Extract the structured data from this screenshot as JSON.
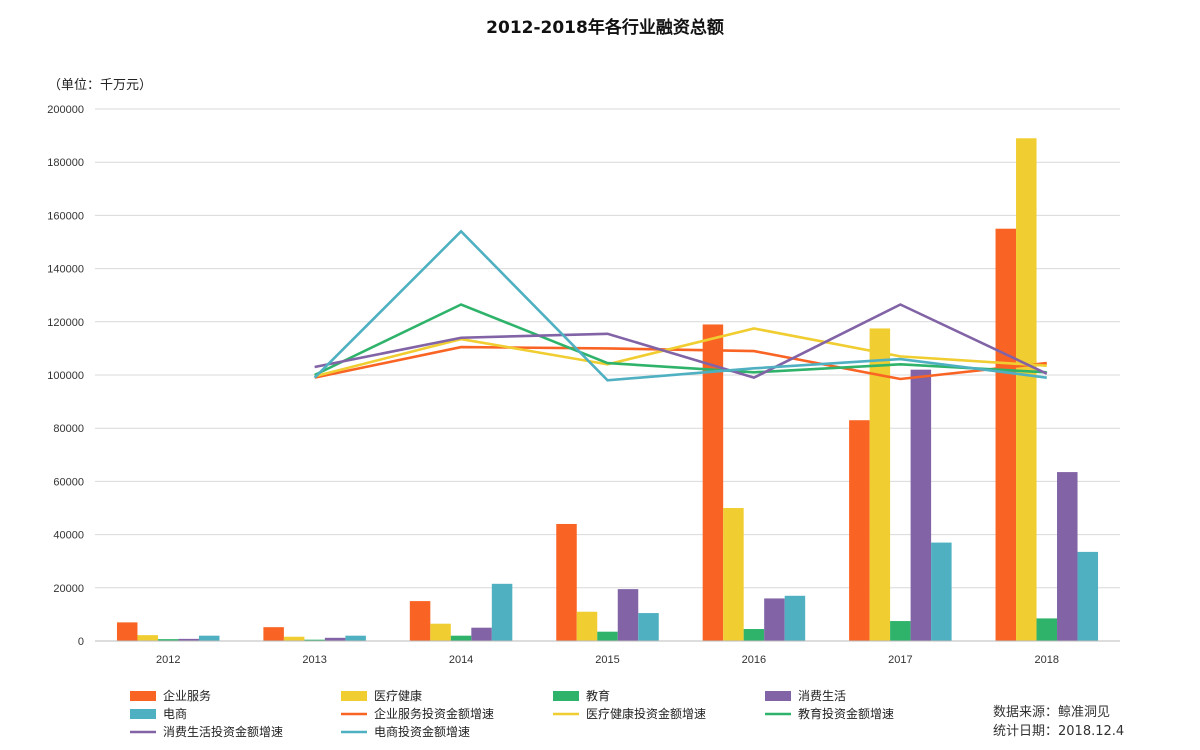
{
  "chart_data": {
    "type": "bar",
    "title": "2012-2018年各行业融资总额",
    "unit_label": "（单位：千万元）",
    "categories": [
      "2012",
      "2013",
      "2014",
      "2015",
      "2016",
      "2017",
      "2018"
    ],
    "ylim": [
      0,
      200000
    ],
    "yticks": [
      "0",
      "20000",
      "40000",
      "60000",
      "80000",
      "100000",
      "120000",
      "140000",
      "160000",
      "180000",
      "200000"
    ],
    "grid": true,
    "legend_position": "bottom",
    "bar_series": [
      {
        "name": "企业服务",
        "color": "#f96424",
        "values": [
          7000,
          5200,
          15000,
          44000,
          119000,
          83000,
          155000
        ]
      },
      {
        "name": "医疗健康",
        "color": "#f0cd30",
        "values": [
          2200,
          1600,
          6500,
          11000,
          50000,
          117500,
          189000
        ]
      },
      {
        "name": "教育",
        "color": "#2fb36b",
        "values": [
          700,
          500,
          2000,
          3500,
          4500,
          7500,
          8500
        ]
      },
      {
        "name": "消费生活",
        "color": "#8163a6",
        "values": [
          800,
          1200,
          5000,
          19500,
          16000,
          102000,
          63500
        ]
      },
      {
        "name": "电商",
        "color": "#4fb0c2",
        "values": [
          2000,
          2000,
          21500,
          10500,
          17000,
          37000,
          33500
        ]
      }
    ],
    "line_series": [
      {
        "name": "企业服务投资金额增速",
        "color": "#f96424",
        "values": [
          null,
          99000,
          110500,
          110000,
          109000,
          98500,
          104500
        ]
      },
      {
        "name": "医疗健康投资金额增速",
        "color": "#f0cd30",
        "values": [
          null,
          99500,
          113500,
          104000,
          117500,
          107000,
          103500
        ]
      },
      {
        "name": "教育投资金额增速",
        "color": "#2fb36b",
        "values": [
          null,
          100000,
          126500,
          104500,
          101000,
          104000,
          101000
        ]
      },
      {
        "name": "消费生活投资金额增速",
        "color": "#8163a6",
        "values": [
          null,
          103000,
          114000,
          115500,
          99000,
          126500,
          100500
        ]
      },
      {
        "name": "电商投资金额增速",
        "color": "#4fb0c2",
        "values": [
          null,
          99000,
          154000,
          98000,
          102500,
          106000,
          99000
        ]
      }
    ],
    "legend": [
      "企业服务",
      "医疗健康",
      "教育",
      "消费生活",
      "电商",
      "企业服务投资金额增速",
      "医疗健康投资金额增速",
      "教育投资金额增速",
      "消费生活投资金额增速",
      "电商投资金额增速"
    ]
  },
  "source": {
    "line1": "数据来源：鲸准洞见",
    "line2": "统计日期：2018.12.4"
  }
}
